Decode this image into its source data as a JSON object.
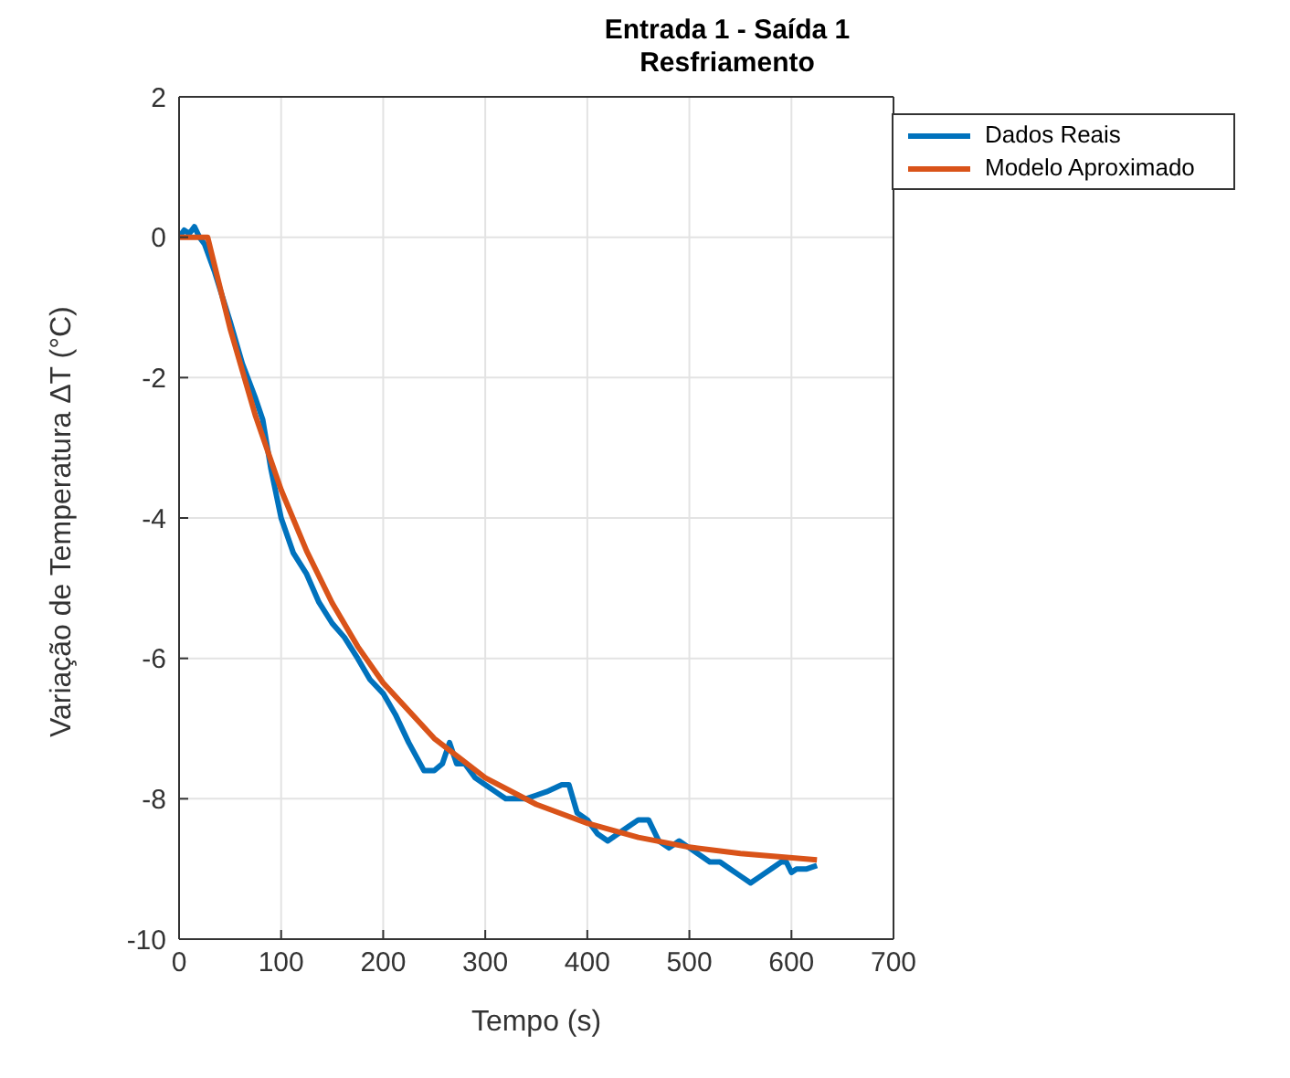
{
  "chart_data": {
    "type": "line",
    "title": "Entrada 1 - Saída 1",
    "subtitle": "Resfriamento",
    "xlabel": "Tempo (s)",
    "ylabel": "Variação de Temperatura  ΔT (°C)",
    "xlim": [
      0,
      700
    ],
    "xticks": [
      0,
      100,
      200,
      300,
      400,
      500,
      600,
      700
    ],
    "ylim": [
      -10,
      2
    ],
    "yticks": [
      -10,
      -8,
      -6,
      -4,
      -2,
      0,
      2
    ],
    "grid": true,
    "legend": "top right",
    "marker": "none",
    "line_style": "solid",
    "series": [
      {
        "name": "Dados Reais",
        "color": "#0072bd",
        "x": [
          0,
          5,
          10,
          15,
          20,
          25,
          35,
          50,
          62,
          75,
          82,
          90,
          100,
          112,
          125,
          137,
          150,
          162,
          175,
          187,
          200,
          212,
          225,
          240,
          250,
          258,
          265,
          272,
          280,
          290,
          300,
          310,
          320,
          330,
          340,
          350,
          360,
          375,
          382,
          390,
          400,
          410,
          420,
          430,
          440,
          450,
          460,
          470,
          480,
          490,
          500,
          510,
          520,
          530,
          540,
          550,
          560,
          570,
          580,
          590,
          595,
          600,
          605,
          615,
          625
        ],
        "values": [
          0,
          0.1,
          0.05,
          0.15,
          0,
          -0.1,
          -0.5,
          -1.2,
          -1.8,
          -2.3,
          -2.6,
          -3.3,
          -4.0,
          -4.5,
          -4.8,
          -5.2,
          -5.5,
          -5.7,
          -6.0,
          -6.3,
          -6.5,
          -6.8,
          -7.2,
          -7.6,
          -7.6,
          -7.5,
          -7.2,
          -7.5,
          -7.5,
          -7.7,
          -7.8,
          -7.9,
          -8.0,
          -8.0,
          -8.0,
          -7.95,
          -7.9,
          -7.8,
          -7.8,
          -8.2,
          -8.3,
          -8.5,
          -8.6,
          -8.5,
          -8.4,
          -8.3,
          -8.3,
          -8.6,
          -8.7,
          -8.6,
          -8.7,
          -8.8,
          -8.9,
          -8.9,
          -9.0,
          -9.1,
          -9.2,
          -9.1,
          -9.0,
          -8.9,
          -8.9,
          -9.05,
          -9.0,
          -9.0,
          -8.95
        ]
      },
      {
        "name": "Modelo Aproximado",
        "color": "#d95319",
        "x": [
          0,
          28,
          50,
          75,
          100,
          125,
          150,
          175,
          200,
          250,
          300,
          350,
          400,
          450,
          500,
          550,
          625
        ],
        "values": [
          0,
          0,
          -1.3,
          -2.55,
          -3.6,
          -4.47,
          -5.21,
          -5.83,
          -6.35,
          -7.14,
          -7.7,
          -8.08,
          -8.35,
          -8.55,
          -8.69,
          -8.78,
          -8.87
        ]
      }
    ]
  }
}
